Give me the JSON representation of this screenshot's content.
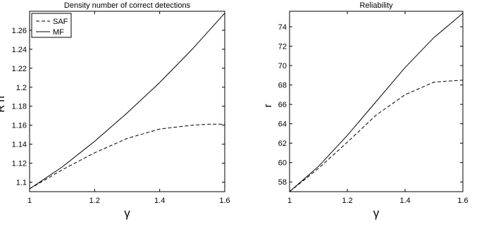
{
  "chart_data": [
    {
      "type": "line",
      "title": "Density number of correct detections",
      "xlabel": "γ",
      "ylabel": "R n",
      "ylabel_superscript": "*",
      "xlim": [
        1,
        1.6
      ],
      "ylim": [
        1.09,
        1.28
      ],
      "xticks": [
        1,
        1.2,
        1.4,
        1.6
      ],
      "xtick_labels": [
        "1",
        "1.2",
        "1.4",
        "1.6"
      ],
      "yticks": [
        1.1,
        1.12,
        1.14,
        1.16,
        1.18,
        1.2,
        1.22,
        1.24,
        1.26
      ],
      "ytick_labels": [
        "1.1",
        "1.12",
        "1.14",
        "1.16",
        "1.18",
        "1.2",
        "1.22",
        "1.24",
        "1.26"
      ],
      "grid": false,
      "legend_position": "top-left",
      "series": [
        {
          "name": "SAF",
          "style": "dashed",
          "color": "#000000",
          "x": [
            1.0,
            1.1,
            1.2,
            1.3,
            1.4,
            1.5,
            1.55,
            1.6
          ],
          "y": [
            1.093,
            1.113,
            1.131,
            1.146,
            1.156,
            1.16,
            1.161,
            1.161
          ]
        },
        {
          "name": "MF",
          "style": "solid",
          "color": "#000000",
          "x": [
            1.0,
            1.1,
            1.2,
            1.3,
            1.4,
            1.5,
            1.6
          ],
          "y": [
            1.093,
            1.116,
            1.143,
            1.173,
            1.205,
            1.24,
            1.278
          ]
        }
      ]
    },
    {
      "type": "line",
      "title": "Reliability",
      "xlabel": "γ",
      "ylabel": "r",
      "xlim": [
        1,
        1.6
      ],
      "ylim": [
        57,
        75.6
      ],
      "xticks": [
        1,
        1.2,
        1.4,
        1.6
      ],
      "xtick_labels": [
        "1",
        "1.2",
        "1.4",
        "1.6"
      ],
      "yticks": [
        58,
        60,
        62,
        64,
        66,
        68,
        70,
        72,
        74
      ],
      "ytick_labels": [
        "58",
        "60",
        "62",
        "64",
        "66",
        "68",
        "70",
        "72",
        "74"
      ],
      "grid": false,
      "series": [
        {
          "style": "dashed",
          "color": "#000000",
          "x": [
            1.0,
            1.1,
            1.2,
            1.3,
            1.4,
            1.5,
            1.6
          ],
          "y": [
            57.0,
            59.4,
            62.1,
            64.9,
            67.0,
            68.3,
            68.5
          ]
        },
        {
          "style": "solid",
          "color": "#000000",
          "x": [
            1.0,
            1.1,
            1.2,
            1.3,
            1.4,
            1.5,
            1.6
          ],
          "y": [
            57.0,
            59.6,
            62.8,
            66.3,
            69.8,
            72.9,
            75.4
          ]
        }
      ]
    }
  ]
}
